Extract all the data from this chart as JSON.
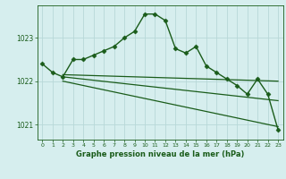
{
  "title": "Graphe pression niveau de la mer (hPa)",
  "background_color": "#d6eeee",
  "grid_color": "#b8d8d8",
  "line_color": "#1a5c1a",
  "text_color": "#1a5c1a",
  "xlim": [
    -0.5,
    23.5
  ],
  "ylim": [
    1020.65,
    1023.75
  ],
  "yticks": [
    1021,
    1022,
    1023
  ],
  "xticks": [
    0,
    1,
    2,
    3,
    4,
    5,
    6,
    7,
    8,
    9,
    10,
    11,
    12,
    13,
    14,
    15,
    16,
    17,
    18,
    19,
    20,
    21,
    22,
    23
  ],
  "series": [
    {
      "x": [
        0,
        1,
        2,
        3,
        4,
        5,
        6,
        7,
        8,
        9,
        10,
        11,
        12,
        13,
        14,
        15,
        16,
        17,
        18,
        19,
        20,
        21,
        22,
        23
      ],
      "y": [
        1022.4,
        1022.2,
        1022.1,
        1022.5,
        1022.5,
        1022.6,
        1022.7,
        1022.8,
        1023.0,
        1023.15,
        1023.55,
        1023.55,
        1023.4,
        1022.75,
        1022.65,
        1022.8,
        1022.35,
        1022.2,
        1022.05,
        1021.9,
        1021.7,
        1022.05,
        1021.7,
        1020.88
      ],
      "marker": "D",
      "markersize": 2.5,
      "linewidth": 1.0,
      "has_marker": true
    },
    {
      "x": [
        2,
        23
      ],
      "y": [
        1022.15,
        1022.0
      ],
      "marker": null,
      "markersize": 0,
      "linewidth": 0.9,
      "has_marker": false
    },
    {
      "x": [
        2,
        23
      ],
      "y": [
        1022.1,
        1021.55
      ],
      "marker": null,
      "markersize": 0,
      "linewidth": 0.9,
      "has_marker": false
    },
    {
      "x": [
        2,
        23
      ],
      "y": [
        1022.0,
        1020.95
      ],
      "marker": null,
      "markersize": 0,
      "linewidth": 0.9,
      "has_marker": false
    }
  ]
}
